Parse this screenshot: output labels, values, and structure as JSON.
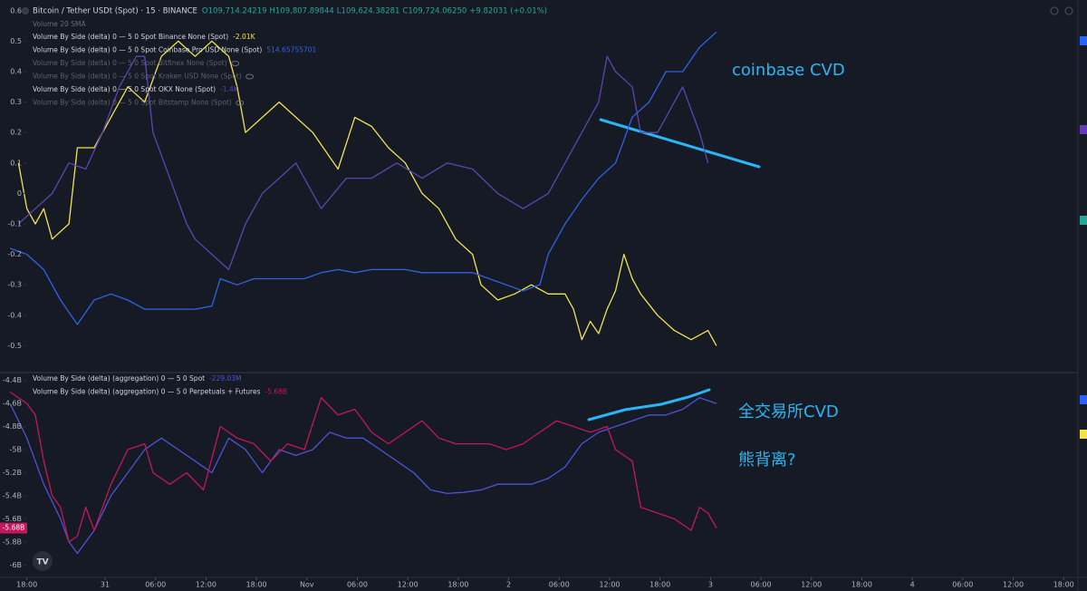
{
  "chart_data": [
    {
      "type": "line",
      "title": "Bitcoin / Tether USDt (Spot) · 15 · BINANCE",
      "ohlc": [
        "O109,714.24219",
        "H109,807.89844",
        "L109,624.38281",
        "C109,724.06250"
      ],
      "change": "+9.82031 (+0.01%)",
      "indicator": "Volume 20 SMA",
      "annotations": [
        "coinbase CVD"
      ],
      "xlim": [
        -3.2,
        125
      ],
      "ylim": [
        -0.585,
        0.635
      ],
      "yticks": [
        0.6,
        0.5,
        0.4,
        0.3,
        0.2,
        0.1,
        0,
        -0.1,
        -0.2,
        -0.3,
        -0.4,
        -0.5
      ],
      "series": [
        {
          "name": "Volume By Side (delta) 0 — 5 0 Spot Binance None (Spot)",
          "legend_value": "-2.01K",
          "color": "#f2e34c",
          "x": [
            -1,
            0,
            1,
            2,
            3,
            5,
            6,
            8,
            10,
            12,
            14,
            16,
            18,
            20,
            22,
            24,
            25,
            26,
            28,
            30,
            32,
            34,
            36,
            37,
            39,
            41,
            43,
            45,
            47,
            49,
            51,
            53,
            54,
            56,
            58,
            60,
            62,
            64,
            65,
            66,
            67,
            68,
            69,
            70,
            71,
            72,
            73,
            75,
            77,
            79,
            81,
            82
          ],
          "values": [
            0.1,
            -0.05,
            -0.1,
            -0.05,
            -0.15,
            -0.1,
            0.15,
            0.15,
            0.25,
            0.35,
            0.3,
            0.45,
            0.5,
            0.45,
            0.5,
            0.45,
            0.35,
            0.2,
            0.25,
            0.3,
            0.25,
            0.2,
            0.12,
            0.08,
            0.25,
            0.22,
            0.15,
            0.1,
            0,
            -0.05,
            -0.15,
            -0.2,
            -0.3,
            -0.35,
            -0.33,
            -0.3,
            -0.33,
            -0.33,
            -0.38,
            -0.48,
            -0.42,
            -0.46,
            -0.38,
            -0.32,
            -0.2,
            -0.28,
            -0.33,
            -0.4,
            -0.45,
            -0.48,
            -0.45,
            -0.5
          ]
        },
        {
          "name": "Volume By Side (delta) 0 — 5 0 Spot Coinbase Pro USD None (Spot)",
          "legend_value": "514.65755701",
          "color": "#2f62e6",
          "x": [
            -2,
            0,
            2,
            4,
            6,
            8,
            10,
            12,
            14,
            16,
            18,
            20,
            22,
            23,
            25,
            27,
            29,
            31,
            33,
            35,
            37,
            39,
            41,
            43,
            45,
            47,
            49,
            51,
            53,
            55,
            57,
            59,
            61,
            62,
            64,
            66,
            68,
            70,
            72,
            74,
            76,
            78,
            80,
            82
          ],
          "values": [
            -0.18,
            -0.2,
            -0.25,
            -0.35,
            -0.43,
            -0.35,
            -0.33,
            -0.35,
            -0.38,
            -0.38,
            -0.38,
            -0.38,
            -0.37,
            -0.28,
            -0.3,
            -0.28,
            -0.28,
            -0.28,
            -0.28,
            -0.26,
            -0.25,
            -0.26,
            -0.25,
            -0.25,
            -0.25,
            -0.26,
            -0.26,
            -0.26,
            -0.26,
            -0.28,
            -0.3,
            -0.32,
            -0.3,
            -0.2,
            -0.1,
            -0.02,
            0.05,
            0.1,
            0.25,
            0.3,
            0.4,
            0.4,
            0.48,
            0.53
          ]
        },
        {
          "name": "Volume By Side (delta) 0 — 5 0 Spot Bitfinex None (Spot)",
          "visible": false
        },
        {
          "name": "Volume By Side (delta) 0 — 5 0 Spot Kraken USD None (Spot)",
          "visible": false
        },
        {
          "name": "Volume By Side (delta) 0 — 5 0 Spot OKX None (Spot)",
          "legend_value": "-1.4K",
          "color": "#5c45b0",
          "x": [
            -1,
            1,
            3,
            5,
            7,
            9,
            11,
            13,
            14,
            15,
            17,
            19,
            20,
            22,
            24,
            26,
            28,
            30,
            32,
            35,
            38,
            41,
            44,
            47,
            50,
            53,
            56,
            59,
            62,
            64,
            66,
            68,
            69,
            70,
            72,
            73,
            75,
            76,
            78,
            80,
            81
          ],
          "values": [
            -0.1,
            -0.05,
            0,
            0.1,
            0.08,
            0.2,
            0.35,
            0.45,
            0.45,
            0.2,
            0.05,
            -0.1,
            -0.15,
            -0.2,
            -0.25,
            -0.1,
            0,
            0.05,
            0.1,
            -0.05,
            0.05,
            0.05,
            0.1,
            0.05,
            0.1,
            0.08,
            0,
            -0.05,
            0,
            0.1,
            0.2,
            0.3,
            0.45,
            0.4,
            0.35,
            0.2,
            0.2,
            0.25,
            0.35,
            0.2,
            0.1
          ]
        },
        {
          "name": "Volume By Side (delta) 0 — 5 0 Spot Bitstamp None (Spot)",
          "visible": false
        }
      ]
    },
    {
      "type": "line",
      "annotations": [
        "全交易所CVD",
        "熊背离?"
      ],
      "xlim": [
        -3.2,
        125
      ],
      "ylim": [
        -6.1,
        -4.34
      ],
      "yticks": [
        {
          "value": -4.4,
          "label": "-4.4B"
        },
        {
          "value": -4.6,
          "label": "-4.6B"
        },
        {
          "value": -4.8,
          "label": "-4.8B"
        },
        {
          "value": -5,
          "label": "-5B"
        },
        {
          "value": -5.2,
          "label": "-5.2B"
        },
        {
          "value": -5.4,
          "label": "-5.4B"
        },
        {
          "value": -5.6,
          "label": "-5.6B"
        },
        {
          "value": -5.8,
          "label": "-5.8B"
        },
        {
          "value": -6,
          "label": "-6B"
        }
      ],
      "xticks": [
        {
          "value": 0,
          "label": "18:00"
        },
        {
          "value": 9.3,
          "label": "31"
        },
        {
          "value": 15.3,
          "label": "06:00"
        },
        {
          "value": 21.3,
          "label": "12:00"
        },
        {
          "value": 27.3,
          "label": "18:00"
        },
        {
          "value": 33.3,
          "label": "Nov"
        },
        {
          "value": 39.3,
          "label": "06:00"
        },
        {
          "value": 45.3,
          "label": "12:00"
        },
        {
          "value": 51.3,
          "label": "18:00"
        },
        {
          "value": 57.3,
          "label": "2"
        },
        {
          "value": 63.3,
          "label": "06:00"
        },
        {
          "value": 69.3,
          "label": "12:00"
        },
        {
          "value": 75.3,
          "label": "18:00"
        },
        {
          "value": 81.3,
          "label": "3"
        },
        {
          "value": 87.3,
          "label": "06:00"
        },
        {
          "value": 93.3,
          "label": "12:00"
        },
        {
          "value": 99.3,
          "label": "18:00"
        },
        {
          "value": 105.3,
          "label": "4"
        },
        {
          "value": 111.3,
          "label": "06:00"
        },
        {
          "value": 117.3,
          "label": "12:00"
        },
        {
          "value": 123.3,
          "label": "18:00"
        }
      ],
      "series": [
        {
          "name": "Volume By Side (delta) (aggregation) 0 — 5 0 Spot",
          "legend_value": "-229.03M",
          "color": "#4a55d6",
          "x": [
            -2,
            0,
            2,
            4,
            5,
            6,
            8,
            10,
            12,
            14,
            16,
            18,
            20,
            22,
            24,
            26,
            28,
            30,
            32,
            34,
            36,
            38,
            40,
            42,
            44,
            46,
            48,
            50,
            52,
            54,
            56,
            58,
            60,
            62,
            64,
            66,
            68,
            70,
            72,
            74,
            76,
            78,
            80,
            82
          ],
          "values": [
            -4.6,
            -4.9,
            -5.3,
            -5.6,
            -5.8,
            -5.9,
            -5.7,
            -5.4,
            -5.2,
            -5.0,
            -4.9,
            -5.0,
            -5.1,
            -5.2,
            -4.9,
            -5.0,
            -5.2,
            -5.0,
            -5.05,
            -5.0,
            -4.85,
            -4.9,
            -4.9,
            -5.0,
            -5.1,
            -5.2,
            -5.35,
            -5.38,
            -5.37,
            -5.35,
            -5.3,
            -5.3,
            -5.3,
            -5.25,
            -5.15,
            -4.95,
            -4.85,
            -4.8,
            -4.75,
            -4.7,
            -4.7,
            -4.65,
            -4.55,
            -4.6
          ]
        },
        {
          "name": "Volume By Side (delta) (aggregation) 0 — 5 0 Perpetuals + Futures",
          "legend_value": "-5.68B",
          "color": "#c2185b",
          "x": [
            -2,
            0,
            1,
            2,
            3,
            4,
            5,
            6,
            7,
            8,
            10,
            12,
            14,
            15,
            17,
            19,
            21,
            23,
            25,
            27,
            29,
            31,
            33,
            35,
            37,
            39,
            41,
            43,
            45,
            47,
            49,
            51,
            53,
            55,
            57,
            59,
            61,
            63,
            65,
            67,
            69,
            70,
            72,
            73,
            75,
            77,
            79,
            80,
            81,
            82
          ],
          "values": [
            -4.5,
            -4.6,
            -4.7,
            -5.1,
            -5.4,
            -5.5,
            -5.8,
            -5.75,
            -5.5,
            -5.7,
            -5.3,
            -5.0,
            -4.95,
            -5.2,
            -5.3,
            -5.2,
            -5.35,
            -4.8,
            -4.9,
            -4.95,
            -5.1,
            -4.95,
            -5.0,
            -4.55,
            -4.7,
            -4.65,
            -4.85,
            -4.95,
            -4.85,
            -4.75,
            -4.9,
            -4.95,
            -4.95,
            -4.95,
            -5.0,
            -4.95,
            -4.85,
            -4.75,
            -4.8,
            -4.85,
            -4.8,
            -5.0,
            -5.1,
            -5.5,
            -5.55,
            -5.6,
            -5.7,
            -5.5,
            -5.55,
            -5.68
          ]
        }
      ]
    }
  ]
}
